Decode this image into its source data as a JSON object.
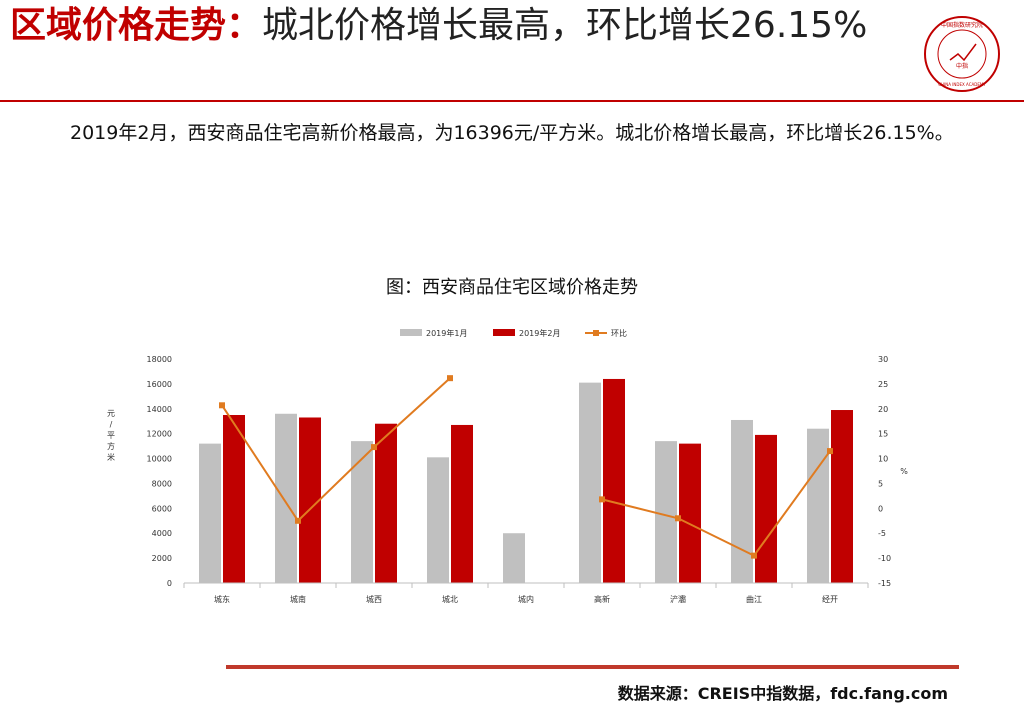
{
  "header": {
    "title_red": "区域价格走势：",
    "title_dark": "城北价格增长最高，环比增长26.15%",
    "logo_ring_text": "中国指数研究院",
    "logo_center_text": "中指",
    "logo_sub_text": "CHINA INDEX ACADEMY"
  },
  "body": {
    "summary": "2019年2月，西安商品住宅高新价格最高，为16396元/平方米。城北价格增长最高，环比增长26.15%。"
  },
  "chart_title": "图：西安商品住宅区域价格走势",
  "chart_data": {
    "type": "bar",
    "categories": [
      "城东",
      "城南",
      "城西",
      "城北",
      "城内",
      "高新",
      "浐灞",
      "曲江",
      "经开"
    ],
    "series": [
      {
        "name": "2019年1月",
        "kind": "bar",
        "axis": "left",
        "values": [
          11200,
          13600,
          11400,
          10100,
          4000,
          16100,
          11400,
          13100,
          12400
        ]
      },
      {
        "name": "2019年2月",
        "kind": "bar",
        "axis": "left",
        "values": [
          13500,
          13300,
          12800,
          12700,
          null,
          16396,
          11200,
          11900,
          13900
        ]
      },
      {
        "name": "环比",
        "kind": "line",
        "axis": "right",
        "values": [
          20.7,
          -2.5,
          12.3,
          26.15,
          null,
          1.8,
          -2.0,
          -9.5,
          11.5
        ]
      }
    ],
    "ylabel": "元/平方米",
    "y2label": "%",
    "ylim": [
      0,
      18000
    ],
    "y2lim": [
      -15,
      30
    ],
    "yticks": [
      0,
      2000,
      4000,
      6000,
      8000,
      10000,
      12000,
      14000,
      16000,
      18000
    ],
    "y2ticks": [
      -15,
      -10,
      -5,
      0,
      5,
      10,
      15,
      20,
      25,
      30
    ],
    "legend": "top",
    "grid": false
  },
  "colors": {
    "jan": "#c0c0c0",
    "feb": "#c00000",
    "mom": "#e07b20",
    "accent": "#c00000"
  },
  "source": "数据来源：CREIS中指数据，fdc.fang.com"
}
